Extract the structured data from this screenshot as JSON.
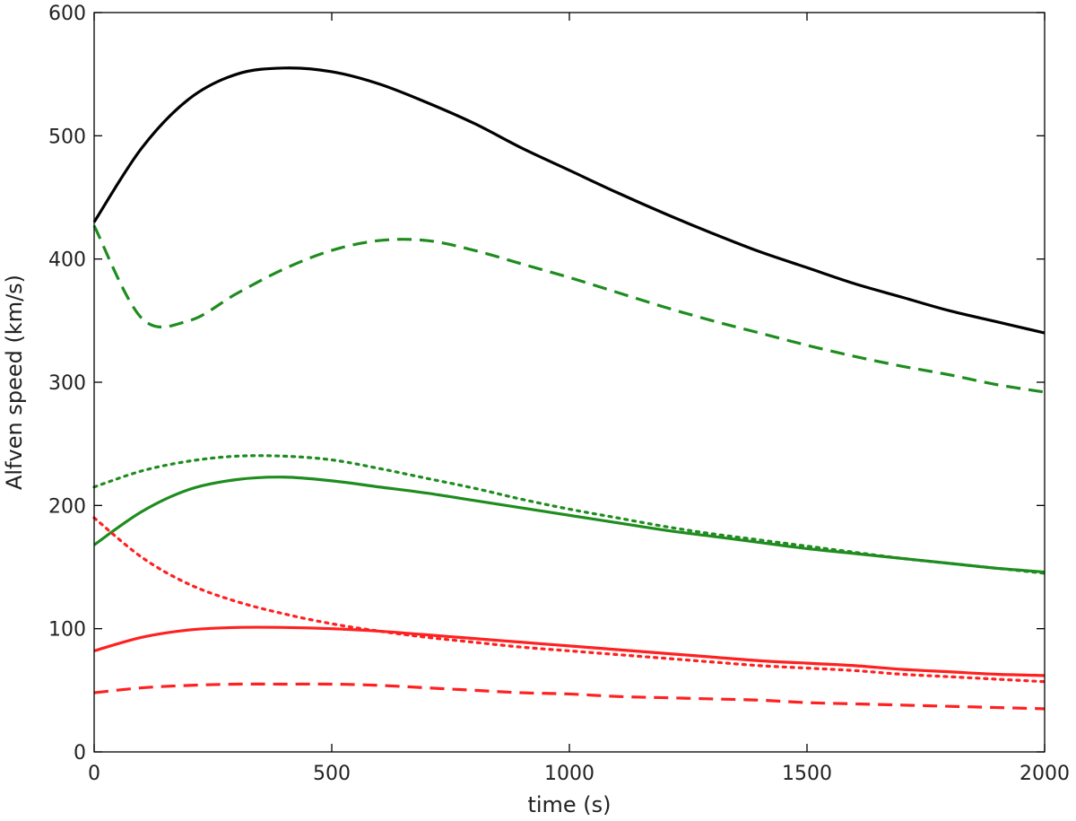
{
  "chart_data": {
    "type": "line",
    "title": "",
    "xlabel": "time (s)",
    "ylabel": "Alfven speed (km/s)",
    "xlim": [
      0,
      2000
    ],
    "ylim": [
      0,
      600
    ],
    "xticks": [
      0,
      500,
      1000,
      1500,
      2000
    ],
    "yticks": [
      0,
      100,
      200,
      300,
      400,
      500,
      600
    ],
    "grid": false,
    "legend": "none",
    "x": [
      0,
      100,
      200,
      300,
      400,
      500,
      600,
      700,
      800,
      900,
      1000,
      1100,
      1200,
      1300,
      1400,
      1500,
      1600,
      1700,
      1800,
      1900,
      2000
    ],
    "series": [
      {
        "color": "#000000",
        "style": "solid",
        "values": [
          430,
          490,
          530,
          550,
          555,
          552,
          542,
          527,
          510,
          490,
          472,
          454,
          437,
          421,
          406,
          393,
          380,
          369,
          358,
          349,
          340
        ]
      },
      {
        "color": "#1e8c1e",
        "style": "dashed",
        "values": [
          427,
          352,
          350,
          372,
          392,
          407,
          415,
          415,
          407,
          396,
          385,
          373,
          361,
          350,
          340,
          330,
          321,
          313,
          306,
          298,
          292
        ]
      },
      {
        "color": "#1e8c1e",
        "style": "dotted",
        "values": [
          215,
          228,
          236,
          240,
          240,
          237,
          230,
          222,
          214,
          205,
          197,
          190,
          183,
          177,
          172,
          167,
          162,
          157,
          153,
          149,
          145
        ]
      },
      {
        "color": "#1e8c1e",
        "style": "solid",
        "values": [
          168,
          195,
          213,
          221,
          223,
          220,
          215,
          210,
          204,
          198,
          192,
          186,
          180,
          175,
          170,
          165,
          161,
          157,
          153,
          149,
          146
        ]
      },
      {
        "color": "#ff2020",
        "style": "dotted",
        "values": [
          190,
          158,
          136,
          122,
          112,
          104,
          98,
          93,
          89,
          85,
          82,
          79,
          76,
          73,
          70,
          68,
          66,
          63,
          61,
          59,
          57
        ]
      },
      {
        "color": "#ff2020",
        "style": "solid",
        "values": [
          82,
          93,
          99,
          101,
          101,
          100,
          98,
          95,
          92,
          89,
          86,
          83,
          80,
          77,
          74,
          72,
          70,
          67,
          65,
          63,
          62
        ]
      },
      {
        "color": "#ff2020",
        "style": "dashed",
        "values": [
          48,
          52,
          54,
          55,
          55,
          55,
          54,
          52,
          50,
          48,
          47,
          45,
          44,
          43,
          42,
          40,
          39,
          38,
          37,
          36,
          35
        ]
      }
    ]
  }
}
